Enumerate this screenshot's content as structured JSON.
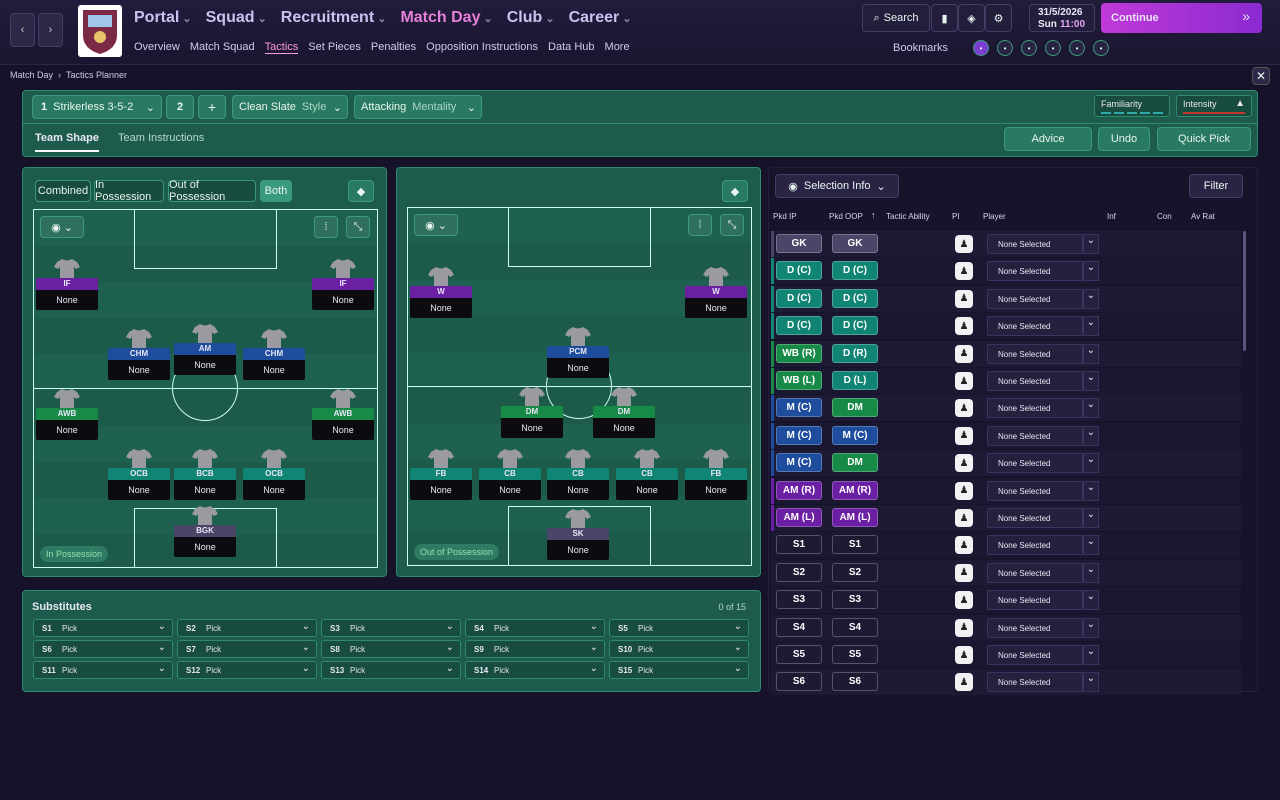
{
  "nav": {
    "main_menu": [
      "Portal",
      "Squad",
      "Recruitment",
      "Match Day",
      "Club",
      "Career"
    ],
    "sub_menu": [
      "Overview",
      "Match Squad",
      "Tactics",
      "Set Pieces",
      "Penalties",
      "Opposition Instructions",
      "Data Hub",
      "More"
    ],
    "search": "Search",
    "bookmarks": "Bookmarks",
    "date": "31/5/2026",
    "day": "Sun",
    "time": "11:00",
    "continue": "Continue"
  },
  "breadcrumb": [
    "Match Day",
    "Tactics Planner"
  ],
  "tactic_bar": {
    "tactic_number": "1",
    "tactic_name": "Strikerless 3-5-2",
    "slot_number": "2",
    "style_value": "Clean Slate",
    "style_label": "Style",
    "mentality_value": "Attacking",
    "mentality_label": "Mentality",
    "familiarity": "Familiarity",
    "intensity": "Intensity"
  },
  "tabs": [
    "Team Shape",
    "Team Instructions"
  ],
  "actions": [
    "Advice",
    "Undo",
    "Quick Pick"
  ],
  "phase_toggles": [
    "Combined",
    "In Possession",
    "Out of Possession",
    "Both"
  ],
  "in_possession": {
    "label": "In Possession",
    "players": [
      {
        "role": "IF",
        "player": "None"
      },
      {
        "role": "IF",
        "player": "None"
      },
      {
        "role": "CHM",
        "player": "None"
      },
      {
        "role": "AM",
        "player": "None"
      },
      {
        "role": "CHM",
        "player": "None"
      },
      {
        "role": "AWB",
        "player": "None"
      },
      {
        "role": "AWB",
        "player": "None"
      },
      {
        "role": "OCB",
        "player": "None"
      },
      {
        "role": "BCB",
        "player": "None"
      },
      {
        "role": "OCB",
        "player": "None"
      },
      {
        "role": "BGK",
        "player": "None"
      }
    ]
  },
  "out_of_possession": {
    "label": "Out of Possession",
    "players": [
      {
        "role": "W",
        "player": "None"
      },
      {
        "role": "W",
        "player": "None"
      },
      {
        "role": "PCM",
        "player": "None"
      },
      {
        "role": "DM",
        "player": "None"
      },
      {
        "role": "DM",
        "player": "None"
      },
      {
        "role": "FB",
        "player": "None"
      },
      {
        "role": "CB",
        "player": "None"
      },
      {
        "role": "CB",
        "player": "None"
      },
      {
        "role": "CB",
        "player": "None"
      },
      {
        "role": "FB",
        "player": "None"
      },
      {
        "role": "SK",
        "player": "None"
      }
    ]
  },
  "substitutes": {
    "title": "Substitutes",
    "count": "0 of 15",
    "slots": [
      {
        "slot": "S1",
        "pick": "Pick"
      },
      {
        "slot": "S2",
        "pick": "Pick"
      },
      {
        "slot": "S3",
        "pick": "Pick"
      },
      {
        "slot": "S4",
        "pick": "Pick"
      },
      {
        "slot": "S5",
        "pick": "Pick"
      },
      {
        "slot": "S6",
        "pick": "Pick"
      },
      {
        "slot": "S7",
        "pick": "Pick"
      },
      {
        "slot": "S8",
        "pick": "Pick"
      },
      {
        "slot": "S9",
        "pick": "Pick"
      },
      {
        "slot": "S10",
        "pick": "Pick"
      },
      {
        "slot": "S11",
        "pick": "Pick"
      },
      {
        "slot": "S12",
        "pick": "Pick"
      },
      {
        "slot": "S13",
        "pick": "Pick"
      },
      {
        "slot": "S14",
        "pick": "Pick"
      },
      {
        "slot": "S15",
        "pick": "Pick"
      }
    ]
  },
  "selection": {
    "title": "Selection Info",
    "filter": "Filter",
    "columns": [
      "Pkd IP",
      "Pkd OOP",
      "Tactic Ability",
      "PI",
      "Player",
      "Inf",
      "Con",
      "Av Rat"
    ],
    "rows": [
      {
        "ip": "GK",
        "oop": "GK",
        "player": "None Selected"
      },
      {
        "ip": "D (C)",
        "oop": "D (C)",
        "player": "None Selected"
      },
      {
        "ip": "D (C)",
        "oop": "D (C)",
        "player": "None Selected"
      },
      {
        "ip": "D (C)",
        "oop": "D (C)",
        "player": "None Selected"
      },
      {
        "ip": "WB (R)",
        "oop": "D (R)",
        "player": "None Selected"
      },
      {
        "ip": "WB (L)",
        "oop": "D (L)",
        "player": "None Selected"
      },
      {
        "ip": "M (C)",
        "oop": "DM",
        "player": "None Selected"
      },
      {
        "ip": "M (C)",
        "oop": "M (C)",
        "player": "None Selected"
      },
      {
        "ip": "M (C)",
        "oop": "DM",
        "player": "None Selected"
      },
      {
        "ip": "AM (R)",
        "oop": "AM (R)",
        "player": "None Selected"
      },
      {
        "ip": "AM (L)",
        "oop": "AM (L)",
        "player": "None Selected"
      },
      {
        "ip": "S1",
        "oop": "S1",
        "player": "None Selected"
      },
      {
        "ip": "S2",
        "oop": "S2",
        "player": "None Selected"
      },
      {
        "ip": "S3",
        "oop": "S3",
        "player": "None Selected"
      },
      {
        "ip": "S4",
        "oop": "S4",
        "player": "None Selected"
      },
      {
        "ip": "S5",
        "oop": "S5",
        "player": "None Selected"
      },
      {
        "ip": "S6",
        "oop": "S6",
        "player": "None Selected"
      }
    ]
  }
}
